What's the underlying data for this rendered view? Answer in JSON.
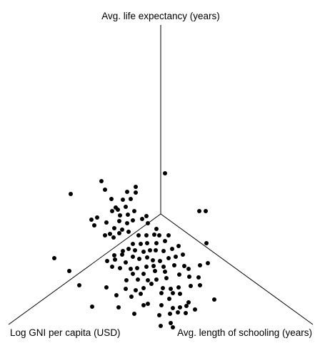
{
  "chart_data": {
    "type": "scatter",
    "title": "",
    "axes": [
      {
        "key": "life",
        "label": "Avg. life expectancy (years)"
      },
      {
        "key": "gni",
        "label": "Log GNI per capita (USD)"
      },
      {
        "key": "school",
        "label": "Avg. length of schooling (years)"
      }
    ],
    "projected_points": [
      [
        231,
        243
      ],
      [
        99,
        272
      ],
      [
        142,
        254
      ],
      [
        147,
        266
      ],
      [
        178,
        269
      ],
      [
        190,
        270
      ],
      [
        190,
        262
      ],
      [
        156,
        279
      ],
      [
        172,
        280
      ],
      [
        183,
        279
      ],
      [
        176,
        290
      ],
      [
        162,
        291
      ],
      [
        157,
        296
      ],
      [
        165,
        294
      ],
      [
        188,
        296
      ],
      [
        168,
        302
      ],
      [
        179,
        301
      ],
      [
        186,
        309
      ],
      [
        199,
        307
      ],
      [
        205,
        303
      ],
      [
        207,
        313
      ],
      [
        128,
        308
      ],
      [
        136,
        305
      ],
      [
        132,
        316
      ],
      [
        149,
        312
      ],
      [
        167,
        310
      ],
      [
        178,
        313
      ],
      [
        160,
        320
      ],
      [
        171,
        322
      ],
      [
        154,
        328
      ],
      [
        159,
        333
      ],
      [
        167,
        327
      ],
      [
        180,
        325
      ],
      [
        147,
        330
      ],
      [
        194,
        330
      ],
      [
        205,
        330
      ],
      [
        216,
        329
      ],
      [
        223,
        330
      ],
      [
        186,
        342
      ],
      [
        197,
        342
      ],
      [
        206,
        341
      ],
      [
        219,
        341
      ],
      [
        231,
        338
      ],
      [
        172,
        352
      ],
      [
        180,
        349
      ],
      [
        189,
        351
      ],
      [
        201,
        353
      ],
      [
        210,
        351
      ],
      [
        218,
        351
      ],
      [
        229,
        352
      ],
      [
        241,
        349
      ],
      [
        289,
        341
      ],
      [
        160,
        358
      ],
      [
        171,
        357
      ],
      [
        186,
        360
      ],
      [
        195,
        363
      ],
      [
        206,
        361
      ],
      [
        150,
        366
      ],
      [
        161,
        364
      ],
      [
        176,
        368
      ],
      [
        214,
        365
      ],
      [
        224,
        366
      ],
      [
        236,
        362
      ],
      [
        246,
        360
      ],
      [
        157,
        374
      ],
      [
        168,
        376
      ],
      [
        183,
        377
      ],
      [
        192,
        376
      ],
      [
        205,
        374
      ],
      [
        215,
        373
      ],
      [
        229,
        374
      ],
      [
        244,
        372
      ],
      [
        258,
        373
      ],
      [
        264,
        377
      ],
      [
        280,
        372
      ],
      [
        291,
        369
      ],
      [
        76,
        362
      ],
      [
        97,
        380
      ],
      [
        186,
        384
      ],
      [
        201,
        384
      ],
      [
        217,
        380
      ],
      [
        231,
        381
      ],
      [
        251,
        385
      ],
      [
        233,
        390
      ],
      [
        177,
        393
      ],
      [
        193,
        392
      ],
      [
        207,
        393
      ],
      [
        219,
        392
      ],
      [
        265,
        388
      ],
      [
        278,
        389
      ],
      [
        111,
        400
      ],
      [
        149,
        403
      ],
      [
        176,
        405
      ],
      [
        190,
        407
      ],
      [
        201,
        404
      ],
      [
        212,
        398
      ],
      [
        228,
        404
      ],
      [
        239,
        405
      ],
      [
        250,
        403
      ],
      [
        267,
        401
      ],
      [
        280,
        400
      ],
      [
        163,
        414
      ],
      [
        184,
        416
      ],
      [
        197,
        412
      ],
      [
        226,
        411
      ],
      [
        242,
        411
      ],
      [
        252,
        412
      ],
      [
        237,
        419
      ],
      [
        300,
        420
      ],
      [
        129,
        430
      ],
      [
        166,
        431
      ],
      [
        201,
        428
      ],
      [
        207,
        426
      ],
      [
        226,
        428
      ],
      [
        242,
        432
      ],
      [
        252,
        431
      ],
      [
        261,
        429
      ],
      [
        264,
        424
      ],
      [
        273,
        434
      ],
      [
        188,
        440
      ],
      [
        223,
        442
      ],
      [
        238,
        440
      ],
      [
        249,
        438
      ],
      [
        260,
        439
      ],
      [
        225,
        457
      ],
      [
        239,
        453
      ],
      [
        242,
        459
      ],
      [
        279,
        296
      ],
      [
        288,
        296
      ],
      [
        219,
        321
      ],
      [
        236,
        330
      ],
      [
        250,
        345
      ],
      [
        256,
        357
      ]
    ]
  }
}
